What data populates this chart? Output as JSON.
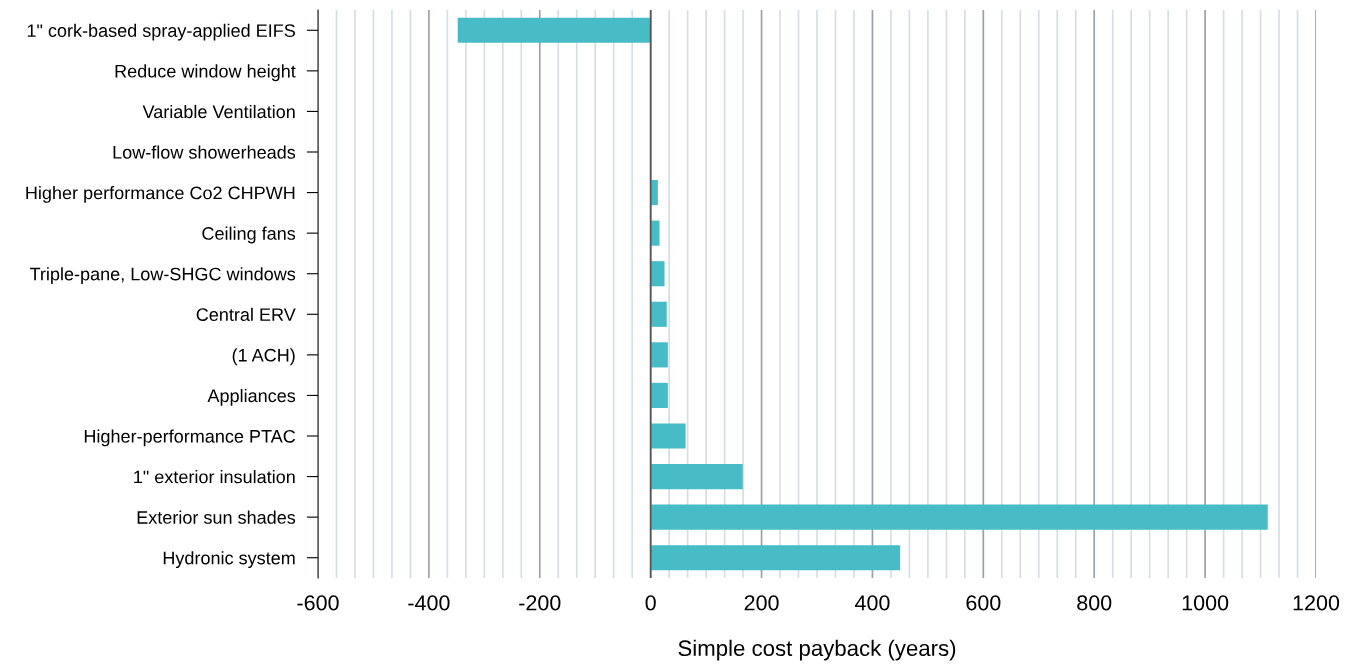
{
  "chart_data": {
    "type": "bar",
    "orientation": "horizontal",
    "xlabel": "Simple cost payback (years)",
    "categories": [
      "1\" cork-based spray-applied EIFS",
      "Reduce window height",
      "Variable Ventilation",
      "Low-flow showerheads",
      "Higher performance Co2 CHPWH",
      "Ceiling fans",
      "Triple-pane, Low-SHGC windows",
      "Central ERV",
      "(1 ACH)",
      "Appliances",
      "Higher-performance PTAC",
      "1\" exterior insulation",
      "Exterior sun shades",
      "Hydronic system"
    ],
    "values": [
      -348,
      0,
      0,
      0,
      13,
      16,
      25,
      29,
      31,
      31,
      63,
      166,
      1113,
      450
    ],
    "color": "#47bcc6",
    "xlim": [
      -600,
      1200
    ],
    "xticks": [
      -600,
      -400,
      -200,
      0,
      200,
      400,
      600,
      800,
      1000,
      1200
    ],
    "grid": "x",
    "legend": false
  }
}
